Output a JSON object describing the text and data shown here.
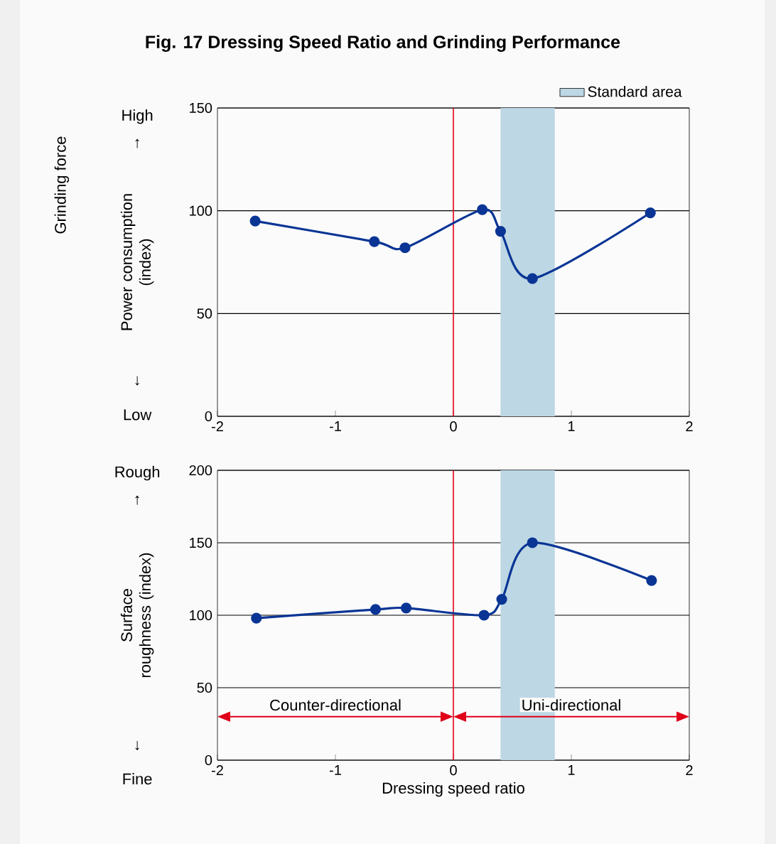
{
  "chart_data": [
    {
      "type": "line",
      "title": "Fig. 17 Dressing Speed Ratio and Grinding Performance",
      "ylabel": "Power consumption (index)",
      "annotations": [
        "Grinding force",
        "High",
        "↑",
        "↓",
        "Low"
      ],
      "series": [
        {
          "color": "#0a3595",
          "x": [
            -1.68,
            -0.67,
            -0.41,
            0.245,
            0.4,
            0.67,
            1.67
          ],
          "values": [
            95,
            85,
            82,
            100.5,
            90,
            67,
            99
          ]
        }
      ],
      "xlim": [
        -2,
        2
      ],
      "xticks": [
        -2,
        -1,
        0,
        1,
        2
      ],
      "ylim": [
        0,
        150
      ],
      "yticks": [
        0,
        50,
        100,
        150
      ],
      "bands": [
        {
          "axis": "x",
          "from": 0.4,
          "to": 0.86,
          "label": "Standard area",
          "color": "#bdd7e4"
        }
      ],
      "ref_lines": [
        {
          "axis": "x",
          "value": 0,
          "color": "#e0001a"
        }
      ],
      "grid": "y",
      "legend": "top right",
      "marker": "circle",
      "line_style": "solid"
    },
    {
      "type": "line",
      "xlabel": "Dressing speed ratio",
      "ylabel": "Surface roughness (index)",
      "annotations": [
        "Rough",
        "↑",
        "↓",
        "Fine",
        "Counter-directional",
        "Uni-directional"
      ],
      "series": [
        {
          "color": "#0a3595",
          "x": [
            -1.67,
            -0.66,
            -0.4,
            0.26,
            0.41,
            0.67,
            1.68
          ],
          "values": [
            98,
            104,
            105,
            100,
            111,
            150,
            124
          ]
        }
      ],
      "xlim": [
        -2,
        2
      ],
      "xticks": [
        -2,
        -1,
        0,
        1,
        2
      ],
      "ylim": [
        0,
        200
      ],
      "yticks": [
        0,
        50,
        100,
        150,
        200
      ],
      "bands": [
        {
          "axis": "x",
          "from": 0.4,
          "to": 0.86,
          "color": "#bdd7e4"
        }
      ],
      "ref_lines": [
        {
          "axis": "x",
          "value": 0,
          "color": "#e0001a"
        }
      ],
      "grid": "y",
      "marker": "circle",
      "line_style": "solid"
    }
  ]
}
